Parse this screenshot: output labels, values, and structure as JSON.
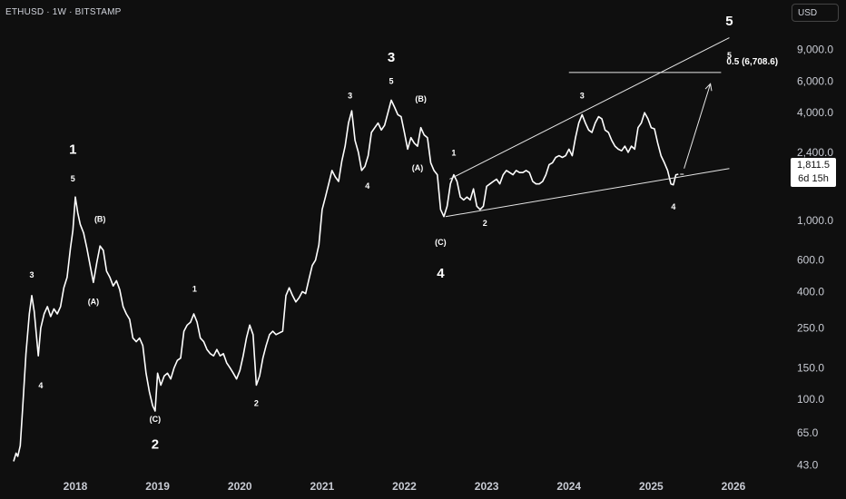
{
  "header": {
    "symbol": "ETHUSD · 1W · BITSTAMP",
    "currency": "USD"
  },
  "price_tag": {
    "price": "1,811.5",
    "countdown": "6d 15h"
  },
  "fib_label": "0.5 (6,708.6)",
  "colors": {
    "background": "#0f0f0f",
    "line": "#ffffff",
    "axis_text": "#c8cbd3"
  },
  "chart_data": {
    "type": "line",
    "scale": "log",
    "ylim": [
      38,
      13500
    ],
    "xlim": [
      2017.2,
      2026.4
    ],
    "y_ticks": [
      {
        "value": 9000,
        "label": "9,000.0"
      },
      {
        "value": 6000,
        "label": "6,000.0"
      },
      {
        "value": 4000,
        "label": "4,000.0"
      },
      {
        "value": 2400,
        "label": "2,400.0"
      },
      {
        "value": 1000,
        "label": "1,000.0"
      },
      {
        "value": 600,
        "label": "600.0"
      },
      {
        "value": 400,
        "label": "400.0"
      },
      {
        "value": 250,
        "label": "250.0"
      },
      {
        "value": 150,
        "label": "150.0"
      },
      {
        "value": 100,
        "label": "100.0"
      },
      {
        "value": 65,
        "label": "65.0"
      },
      {
        "value": 43,
        "label": "43.0"
      }
    ],
    "x_ticks": [
      {
        "value": 2018,
        "label": "2018"
      },
      {
        "value": 2019,
        "label": "2019"
      },
      {
        "value": 2020,
        "label": "2020"
      },
      {
        "value": 2021,
        "label": "2021"
      },
      {
        "value": 2022,
        "label": "2022"
      },
      {
        "value": 2023,
        "label": "2023"
      },
      {
        "value": 2024,
        "label": "2024"
      },
      {
        "value": 2025,
        "label": "2025"
      },
      {
        "value": 2026,
        "label": "2026"
      }
    ],
    "series": [
      {
        "points": [
          [
            2017.25,
            45
          ],
          [
            2017.28,
            50
          ],
          [
            2017.3,
            48
          ],
          [
            2017.33,
            55
          ],
          [
            2017.36,
            90
          ],
          [
            2017.4,
            180
          ],
          [
            2017.44,
            300
          ],
          [
            2017.47,
            380
          ],
          [
            2017.5,
            310
          ],
          [
            2017.53,
            220
          ],
          [
            2017.55,
            175
          ],
          [
            2017.58,
            250
          ],
          [
            2017.62,
            300
          ],
          [
            2017.66,
            330
          ],
          [
            2017.7,
            290
          ],
          [
            2017.74,
            320
          ],
          [
            2017.78,
            300
          ],
          [
            2017.82,
            330
          ],
          [
            2017.86,
            420
          ],
          [
            2017.9,
            480
          ],
          [
            2017.94,
            700
          ],
          [
            2017.97,
            880
          ],
          [
            2018.0,
            1350
          ],
          [
            2018.03,
            1100
          ],
          [
            2018.06,
            950
          ],
          [
            2018.1,
            850
          ],
          [
            2018.14,
            700
          ],
          [
            2018.18,
            560
          ],
          [
            2018.22,
            450
          ],
          [
            2018.26,
            580
          ],
          [
            2018.3,
            720
          ],
          [
            2018.34,
            680
          ],
          [
            2018.38,
            520
          ],
          [
            2018.42,
            480
          ],
          [
            2018.46,
            430
          ],
          [
            2018.5,
            460
          ],
          [
            2018.54,
            410
          ],
          [
            2018.58,
            330
          ],
          [
            2018.62,
            300
          ],
          [
            2018.66,
            280
          ],
          [
            2018.7,
            220
          ],
          [
            2018.74,
            210
          ],
          [
            2018.78,
            220
          ],
          [
            2018.82,
            200
          ],
          [
            2018.86,
            140
          ],
          [
            2018.9,
            110
          ],
          [
            2018.94,
            92
          ],
          [
            2018.97,
            86
          ],
          [
            2019.0,
            140
          ],
          [
            2019.04,
            120
          ],
          [
            2019.08,
            135
          ],
          [
            2019.12,
            140
          ],
          [
            2019.16,
            130
          ],
          [
            2019.2,
            150
          ],
          [
            2019.24,
            165
          ],
          [
            2019.28,
            170
          ],
          [
            2019.32,
            240
          ],
          [
            2019.36,
            260
          ],
          [
            2019.4,
            270
          ],
          [
            2019.44,
            300
          ],
          [
            2019.48,
            270
          ],
          [
            2019.52,
            220
          ],
          [
            2019.56,
            210
          ],
          [
            2019.6,
            190
          ],
          [
            2019.64,
            180
          ],
          [
            2019.68,
            175
          ],
          [
            2019.72,
            190
          ],
          [
            2019.76,
            175
          ],
          [
            2019.8,
            180
          ],
          [
            2019.84,
            160
          ],
          [
            2019.88,
            150
          ],
          [
            2019.92,
            140
          ],
          [
            2019.96,
            130
          ],
          [
            2020.0,
            145
          ],
          [
            2020.04,
            175
          ],
          [
            2020.08,
            220
          ],
          [
            2020.12,
            260
          ],
          [
            2020.16,
            230
          ],
          [
            2020.2,
            120
          ],
          [
            2020.24,
            135
          ],
          [
            2020.28,
            170
          ],
          [
            2020.32,
            200
          ],
          [
            2020.36,
            230
          ],
          [
            2020.4,
            240
          ],
          [
            2020.44,
            230
          ],
          [
            2020.48,
            235
          ],
          [
            2020.52,
            240
          ],
          [
            2020.56,
            380
          ],
          [
            2020.6,
            420
          ],
          [
            2020.64,
            380
          ],
          [
            2020.68,
            350
          ],
          [
            2020.72,
            370
          ],
          [
            2020.76,
            400
          ],
          [
            2020.8,
            390
          ],
          [
            2020.84,
            470
          ],
          [
            2020.88,
            560
          ],
          [
            2020.92,
            600
          ],
          [
            2020.96,
            730
          ],
          [
            2021.0,
            1150
          ],
          [
            2021.04,
            1350
          ],
          [
            2021.08,
            1600
          ],
          [
            2021.12,
            1900
          ],
          [
            2021.16,
            1750
          ],
          [
            2021.2,
            1650
          ],
          [
            2021.24,
            2150
          ],
          [
            2021.28,
            2600
          ],
          [
            2021.32,
            3500
          ],
          [
            2021.36,
            4100
          ],
          [
            2021.4,
            2800
          ],
          [
            2021.44,
            2400
          ],
          [
            2021.48,
            1900
          ],
          [
            2021.52,
            2000
          ],
          [
            2021.56,
            2300
          ],
          [
            2021.6,
            3100
          ],
          [
            2021.64,
            3300
          ],
          [
            2021.68,
            3500
          ],
          [
            2021.72,
            3200
          ],
          [
            2021.76,
            3400
          ],
          [
            2021.8,
            4000
          ],
          [
            2021.84,
            4700
          ],
          [
            2021.88,
            4300
          ],
          [
            2021.92,
            3900
          ],
          [
            2021.96,
            3800
          ],
          [
            2022.0,
            3100
          ],
          [
            2022.04,
            2500
          ],
          [
            2022.08,
            2900
          ],
          [
            2022.12,
            2700
          ],
          [
            2022.16,
            2600
          ],
          [
            2022.2,
            3300
          ],
          [
            2022.24,
            3000
          ],
          [
            2022.28,
            2900
          ],
          [
            2022.32,
            2100
          ],
          [
            2022.36,
            1900
          ],
          [
            2022.4,
            1800
          ],
          [
            2022.44,
            1150
          ],
          [
            2022.48,
            1050
          ],
          [
            2022.52,
            1200
          ],
          [
            2022.56,
            1600
          ],
          [
            2022.6,
            1800
          ],
          [
            2022.64,
            1650
          ],
          [
            2022.68,
            1350
          ],
          [
            2022.72,
            1300
          ],
          [
            2022.76,
            1350
          ],
          [
            2022.8,
            1300
          ],
          [
            2022.84,
            1500
          ],
          [
            2022.88,
            1200
          ],
          [
            2022.92,
            1150
          ],
          [
            2022.96,
            1200
          ],
          [
            2023.0,
            1550
          ],
          [
            2023.04,
            1600
          ],
          [
            2023.08,
            1650
          ],
          [
            2023.12,
            1700
          ],
          [
            2023.16,
            1600
          ],
          [
            2023.2,
            1800
          ],
          [
            2023.24,
            1900
          ],
          [
            2023.28,
            1850
          ],
          [
            2023.32,
            1800
          ],
          [
            2023.36,
            1900
          ],
          [
            2023.4,
            1850
          ],
          [
            2023.44,
            1850
          ],
          [
            2023.48,
            1900
          ],
          [
            2023.52,
            1850
          ],
          [
            2023.56,
            1650
          ],
          [
            2023.6,
            1600
          ],
          [
            2023.64,
            1600
          ],
          [
            2023.68,
            1650
          ],
          [
            2023.72,
            1800
          ],
          [
            2023.76,
            2050
          ],
          [
            2023.8,
            2100
          ],
          [
            2023.84,
            2250
          ],
          [
            2023.88,
            2300
          ],
          [
            2023.92,
            2250
          ],
          [
            2023.96,
            2300
          ],
          [
            2024.0,
            2500
          ],
          [
            2024.04,
            2300
          ],
          [
            2024.08,
            2900
          ],
          [
            2024.12,
            3500
          ],
          [
            2024.16,
            3900
          ],
          [
            2024.2,
            3500
          ],
          [
            2024.24,
            3200
          ],
          [
            2024.28,
            3100
          ],
          [
            2024.32,
            3500
          ],
          [
            2024.36,
            3800
          ],
          [
            2024.4,
            3700
          ],
          [
            2024.44,
            3200
          ],
          [
            2024.48,
            3100
          ],
          [
            2024.52,
            2800
          ],
          [
            2024.56,
            2600
          ],
          [
            2024.6,
            2500
          ],
          [
            2024.64,
            2450
          ],
          [
            2024.68,
            2600
          ],
          [
            2024.72,
            2400
          ],
          [
            2024.76,
            2600
          ],
          [
            2024.8,
            2500
          ],
          [
            2024.84,
            3300
          ],
          [
            2024.88,
            3500
          ],
          [
            2024.92,
            4000
          ],
          [
            2024.96,
            3700
          ],
          [
            2025.0,
            3300
          ],
          [
            2025.04,
            3250
          ],
          [
            2025.08,
            2700
          ],
          [
            2025.12,
            2300
          ],
          [
            2025.16,
            2100
          ],
          [
            2025.2,
            1900
          ],
          [
            2025.24,
            1600
          ],
          [
            2025.27,
            1580
          ],
          [
            2025.3,
            1800
          ],
          [
            2025.33,
            1811.5
          ]
        ]
      }
    ]
  },
  "trendlines": [
    {
      "name": "wedge-upper",
      "from": [
        2022.55,
        1700
      ],
      "to": [
        2025.95,
        10500
      ]
    },
    {
      "name": "wedge-lower",
      "from": [
        2022.5,
        1050
      ],
      "to": [
        2025.95,
        1950
      ]
    },
    {
      "name": "fib-level",
      "from": [
        2024.0,
        6708.6
      ],
      "to": [
        2025.85,
        6708.6
      ]
    },
    {
      "name": "projection-arrow",
      "from": [
        2025.4,
        1950
      ],
      "to": [
        2025.72,
        5800
      ]
    }
  ],
  "wave_labels": [
    {
      "text": "1",
      "x": 2017.97,
      "y": 2350,
      "size": "big"
    },
    {
      "text": "5",
      "x": 2017.97,
      "y": 1650,
      "size": "small"
    },
    {
      "text": "3",
      "x": 2017.47,
      "y": 480,
      "size": "small"
    },
    {
      "text": "4",
      "x": 2017.58,
      "y": 115,
      "size": "small"
    },
    {
      "text": "(B)",
      "x": 2018.3,
      "y": 980,
      "size": "small"
    },
    {
      "text": "(A)",
      "x": 2018.22,
      "y": 340,
      "size": "small"
    },
    {
      "text": "(C)",
      "x": 2018.97,
      "y": 75,
      "size": "small"
    },
    {
      "text": "2",
      "x": 2018.97,
      "y": 53,
      "size": "big"
    },
    {
      "text": "1",
      "x": 2019.45,
      "y": 400,
      "size": "small"
    },
    {
      "text": "2",
      "x": 2020.2,
      "y": 92,
      "size": "small"
    },
    {
      "text": "3",
      "x": 2021.84,
      "y": 7700,
      "size": "big"
    },
    {
      "text": "5",
      "x": 2021.84,
      "y": 5800,
      "size": "small"
    },
    {
      "text": "3",
      "x": 2021.34,
      "y": 4800,
      "size": "small"
    },
    {
      "text": "4",
      "x": 2021.55,
      "y": 1500,
      "size": "small"
    },
    {
      "text": "(B)",
      "x": 2022.2,
      "y": 4600,
      "size": "small"
    },
    {
      "text": "(A)",
      "x": 2022.16,
      "y": 1900,
      "size": "small"
    },
    {
      "text": "(C)",
      "x": 2022.44,
      "y": 730,
      "size": "small"
    },
    {
      "text": "4",
      "x": 2022.44,
      "y": 480,
      "size": "big"
    },
    {
      "text": "1",
      "x": 2022.6,
      "y": 2300,
      "size": "small"
    },
    {
      "text": "2",
      "x": 2022.98,
      "y": 930,
      "size": "small"
    },
    {
      "text": "3",
      "x": 2024.16,
      "y": 4800,
      "size": "small"
    },
    {
      "text": "4",
      "x": 2025.27,
      "y": 1150,
      "size": "small"
    },
    {
      "text": "5",
      "x": 2025.95,
      "y": 12300,
      "size": "big"
    },
    {
      "text": "5",
      "x": 2025.95,
      "y": 8100,
      "size": "small"
    }
  ]
}
